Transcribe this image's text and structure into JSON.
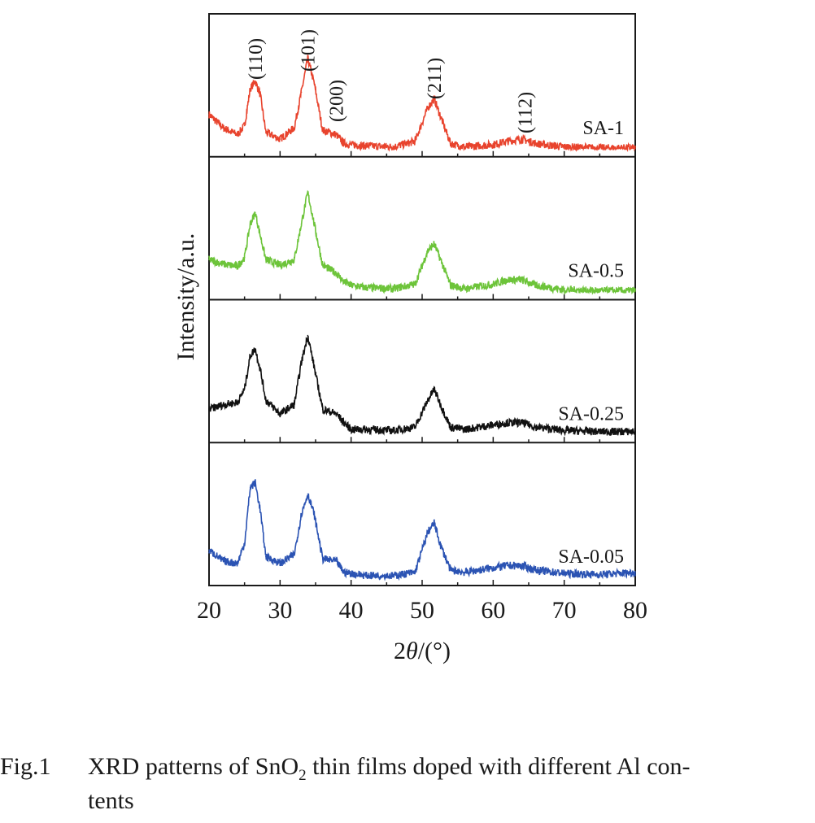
{
  "chart_data": {
    "type": "line",
    "title": "",
    "xlabel_prefix": "2",
    "xlabel_symbol": "θ",
    "xlabel_suffix": "/(°)",
    "ylabel": "Intensity/a.u.",
    "xlim": [
      20,
      80
    ],
    "x_ticks": [
      "20",
      "30",
      "40",
      "50",
      "60",
      "70",
      "80"
    ],
    "stacked_panels": true,
    "grid": false,
    "legend": "series labels inside each panel, right side",
    "peak_labels": [
      {
        "label": "(110)",
        "x": 26.5
      },
      {
        "label": "(101)",
        "x": 33.9
      },
      {
        "label": "(200)",
        "x": 37.9
      },
      {
        "label": "(211)",
        "x": 51.7
      },
      {
        "label": "(112)",
        "x": 64.5
      }
    ],
    "series": [
      {
        "name": "SA-1",
        "color": "#e8432d",
        "scale": 0.85,
        "x": [
          20,
          22,
          24,
          25,
          25.8,
          26.5,
          27.2,
          28,
          30,
          32,
          33,
          33.9,
          34.8,
          36,
          37.9,
          39,
          40,
          42,
          46,
          49,
          50.8,
          51.7,
          52.6,
          54,
          56,
          60,
          62,
          64,
          66,
          70,
          75,
          80
        ],
        "y": [
          0.32,
          0.2,
          0.14,
          0.22,
          0.55,
          0.62,
          0.5,
          0.16,
          0.1,
          0.2,
          0.52,
          0.82,
          0.6,
          0.18,
          0.14,
          0.06,
          0.05,
          0.04,
          0.03,
          0.08,
          0.38,
          0.46,
          0.3,
          0.06,
          0.03,
          0.05,
          0.08,
          0.1,
          0.06,
          0.03,
          0.02,
          0.02
        ]
      },
      {
        "name": "SA-0.5",
        "color": "#6dc43a",
        "scale": 0.85,
        "x": [
          20,
          22,
          24,
          25,
          25.8,
          26.5,
          27.2,
          28,
          30,
          32,
          33,
          33.9,
          34.8,
          36,
          37.9,
          39,
          40,
          42,
          46,
          49,
          50.8,
          51.7,
          52.6,
          54,
          56,
          60,
          62,
          64,
          66,
          70,
          75,
          80
        ],
        "y": [
          0.3,
          0.26,
          0.24,
          0.32,
          0.62,
          0.72,
          0.52,
          0.3,
          0.25,
          0.3,
          0.62,
          0.9,
          0.62,
          0.25,
          0.18,
          0.1,
          0.07,
          0.05,
          0.04,
          0.08,
          0.38,
          0.44,
          0.3,
          0.07,
          0.04,
          0.08,
          0.12,
          0.12,
          0.07,
          0.03,
          0.02,
          0.02
        ]
      },
      {
        "name": "SA-0.25",
        "color": "#111111",
        "scale": 0.85,
        "x": [
          20,
          22,
          24,
          25,
          25.8,
          26.5,
          27.2,
          28,
          30,
          32,
          33,
          33.9,
          34.8,
          36,
          37.9,
          39,
          40,
          42,
          46,
          49,
          50.8,
          51.7,
          52.6,
          54,
          56,
          60,
          62,
          64,
          66,
          70,
          75,
          80
        ],
        "y": [
          0.24,
          0.28,
          0.3,
          0.42,
          0.72,
          0.78,
          0.6,
          0.32,
          0.2,
          0.28,
          0.66,
          0.9,
          0.62,
          0.24,
          0.2,
          0.12,
          0.06,
          0.06,
          0.05,
          0.08,
          0.32,
          0.42,
          0.28,
          0.08,
          0.06,
          0.1,
          0.12,
          0.12,
          0.08,
          0.05,
          0.04,
          0.04
        ]
      },
      {
        "name": "SA-0.05",
        "color": "#2b53b3",
        "scale": 0.85,
        "x": [
          20,
          22,
          24,
          25,
          25.8,
          26.5,
          27.2,
          28,
          30,
          32,
          33,
          33.9,
          34.8,
          36,
          37.9,
          39,
          40,
          42,
          46,
          49,
          50.8,
          51.7,
          52.6,
          54,
          56,
          60,
          62,
          64,
          66,
          70,
          75,
          80
        ],
        "y": [
          0.26,
          0.16,
          0.14,
          0.32,
          0.82,
          0.86,
          0.62,
          0.2,
          0.14,
          0.22,
          0.58,
          0.76,
          0.58,
          0.18,
          0.16,
          0.06,
          0.05,
          0.03,
          0.03,
          0.06,
          0.42,
          0.5,
          0.3,
          0.08,
          0.06,
          0.1,
          0.12,
          0.12,
          0.08,
          0.05,
          0.04,
          0.06
        ]
      }
    ]
  },
  "caption": {
    "label": "Fig.1",
    "text_a": "XRD patterns of SnO",
    "text_sub": "2",
    "text_b": " thin films doped with different Al con-",
    "text_line2": "tents"
  }
}
